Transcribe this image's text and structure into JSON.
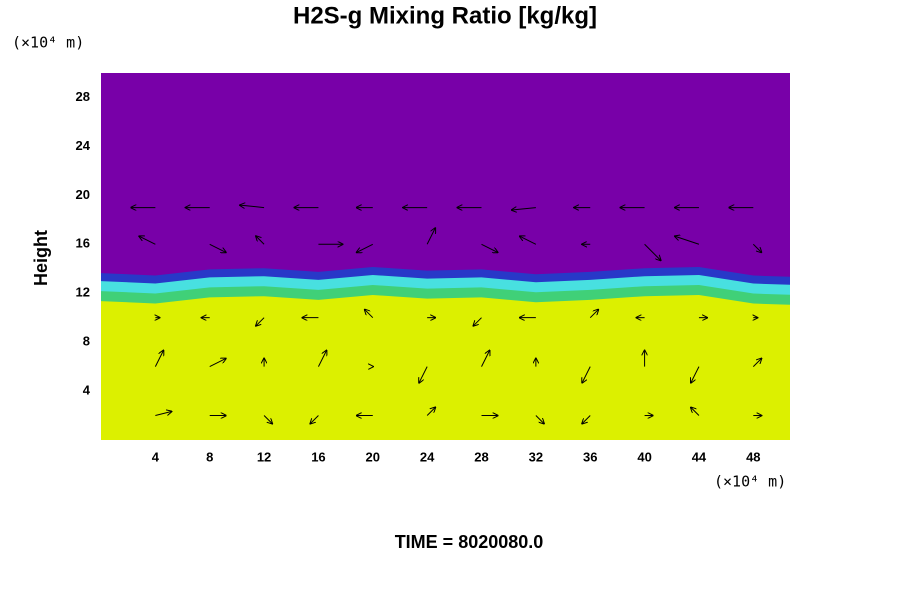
{
  "chart_data": {
    "type": "field",
    "title": "H2S-g Mixing Ratio [kg/kg]",
    "y_label": "Height",
    "y_unit": "(×10⁴ m)",
    "x_unit": "(×10⁴ m)",
    "footer": "TIME = 8020080.0",
    "xlim": [
      0,
      50.7
    ],
    "ylim": [
      0,
      30
    ],
    "xticks": [
      4,
      8,
      12,
      16,
      20,
      24,
      28,
      32,
      36,
      40,
      44,
      48
    ],
    "yticks": [
      4,
      8,
      12,
      16,
      20,
      24,
      28
    ],
    "colors": [
      "#7800a8",
      "#2838c8",
      "#48e0e0",
      "#40d078",
      "#dcf000"
    ],
    "interface": {
      "x": [
        0,
        4,
        8,
        12,
        16,
        20,
        24,
        28,
        32,
        36,
        40,
        44,
        48,
        50.7
      ],
      "y": [
        12.5,
        12.3,
        12.8,
        12.9,
        12.6,
        13.0,
        12.7,
        12.8,
        12.4,
        12.6,
        12.9,
        13.0,
        12.3,
        12.2
      ]
    },
    "vectors": [
      {
        "y": 2,
        "x": [
          4,
          8,
          12,
          16,
          20,
          24,
          28,
          32,
          36,
          40,
          44,
          48
        ],
        "u": [
          2,
          2,
          1,
          -1,
          -2,
          1,
          2,
          1,
          -1,
          1,
          -1,
          1
        ],
        "v": [
          0.5,
          0,
          -1,
          -1,
          0,
          1,
          0,
          -1,
          -1,
          0,
          1,
          0
        ]
      },
      {
        "y": 6,
        "x": [
          4,
          8,
          12,
          16,
          20,
          24,
          28,
          32,
          36,
          40,
          44,
          48
        ],
        "u": [
          1,
          2,
          0,
          1,
          0,
          -1,
          1,
          0,
          -1,
          0,
          -1,
          1
        ],
        "v": [
          2,
          1,
          1,
          2,
          0,
          -2,
          2,
          1,
          -2,
          2,
          -2,
          1
        ]
      },
      {
        "y": 10,
        "x": [
          4,
          8,
          12,
          16,
          20,
          24,
          28,
          32,
          36,
          40,
          44,
          48
        ],
        "u": [
          0.5,
          -1,
          -1,
          -2,
          -1,
          1,
          -1,
          -2,
          1,
          -1,
          1,
          0.5
        ],
        "v": [
          0,
          0,
          -1,
          0,
          1,
          0,
          -1,
          0,
          1,
          0,
          0,
          0
        ]
      },
      {
        "y": 16,
        "x": [
          4,
          8,
          12,
          16,
          20,
          24,
          28,
          32,
          36,
          40,
          44,
          48
        ],
        "u": [
          -2,
          2,
          -1,
          3,
          -2,
          1,
          2,
          -2,
          -1,
          2,
          -3,
          1
        ],
        "v": [
          1,
          -1,
          1,
          0,
          -1,
          2,
          -1,
          1,
          0,
          -2,
          1,
          -1
        ]
      },
      {
        "y": 19,
        "x": [
          4,
          8,
          12,
          16,
          20,
          24,
          28,
          32,
          36,
          40,
          44,
          48
        ],
        "u": [
          -3,
          -3,
          -3,
          -3,
          -2,
          -3,
          -3,
          -3,
          -2,
          -3,
          -3,
          -3
        ],
        "v": [
          0,
          0,
          0.3,
          0,
          0,
          0,
          0,
          -0.3,
          0,
          0,
          0,
          0
        ]
      }
    ]
  }
}
